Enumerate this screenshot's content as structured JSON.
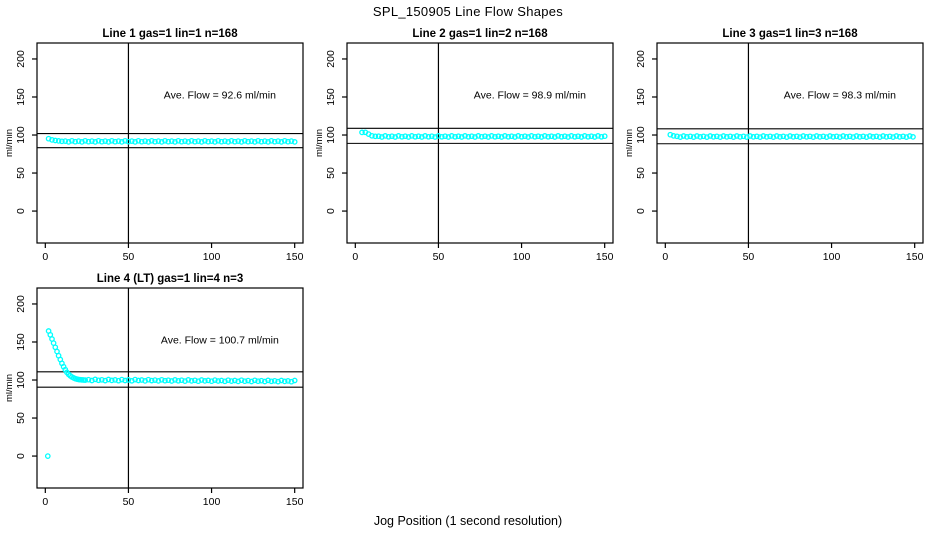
{
  "figure": {
    "title": "SPL_150905  Line Flow Shapes",
    "xlabel": "Jog Position (1 second resolution)"
  },
  "colors": {
    "points": "#00ffff",
    "axis": "#000000",
    "background": "#ffffff"
  },
  "chart_data": {
    "type": "scatter",
    "title": "SPL_150905  Line Flow Shapes",
    "xlabel": "Jog Position (1 second resolution)",
    "ylabel": "ml/min",
    "layout": "4 panels: three across top row, one at bottom left; no grid; no legend",
    "xlim": [
      -5,
      155
    ],
    "ylim": [
      -42,
      221
    ],
    "x_ticks": [
      0,
      50,
      100,
      150
    ],
    "y_ticks": [
      0,
      50,
      100,
      150,
      200
    ],
    "point_color": "#00ffff",
    "annotation_pos": [
      105,
      148
    ],
    "panels": [
      {
        "title": "Line 1 gas=1 lin=1 n=168",
        "annotation": "Ave. Flow =  92.6  ml/min",
        "ave_flow": 92.6,
        "n": 168,
        "vline_x": 50,
        "hlines": [
          101.9,
          83.3
        ],
        "segments": [
          {
            "x0": 2,
            "dx": 2,
            "y": [
              95.2,
              93.6,
              92.8,
              92.2,
              91.8,
              92.0,
              90.9,
              92.4,
              91.2,
              92.0,
              90.9,
              92.4,
              91.2,
              92.0,
              90.9,
              92.4,
              91.2,
              92.0,
              90.9,
              92.4,
              91.2,
              92.0,
              90.9,
              92.4,
              91.2,
              92.0,
              90.9,
              92.4,
              91.2,
              92.0,
              90.9,
              92.4,
              91.2,
              92.0,
              90.9,
              92.4,
              91.2,
              92.0,
              90.9,
              92.4,
              91.2,
              92.0,
              90.9,
              92.4,
              91.2,
              92.0,
              90.9,
              92.4,
              91.2,
              92.0,
              90.9,
              92.4,
              91.2,
              92.0,
              90.9,
              92.4,
              91.2,
              92.0,
              90.9,
              92.4,
              91.2,
              92.0,
              90.9,
              92.4,
              91.2,
              92.0,
              90.9,
              92.4,
              91.2,
              92.0,
              90.9,
              92.4,
              91.2,
              92.0,
              90.9
            ]
          }
        ],
        "extra_points": []
      },
      {
        "title": "Line 2 gas=1 lin=2 n=168",
        "annotation": "Ave. Flow =  98.9  ml/min",
        "ave_flow": 98.9,
        "n": 168,
        "vline_x": 50,
        "hlines": [
          108.8,
          89.0
        ],
        "segments": [
          {
            "x0": 4,
            "dx": 2,
            "y": [
              103.4,
              103.6,
              101.2,
              99.0,
              98.3,
              98.5,
              97.4,
              98.9,
              97.7,
              98.5,
              97.4,
              98.9,
              97.7,
              98.5,
              97.4,
              98.9,
              97.7,
              98.5,
              97.4,
              98.9,
              97.7,
              98.5,
              97.4,
              98.9,
              97.7,
              98.5,
              97.4,
              98.9,
              97.7,
              98.5,
              97.4,
              98.9,
              97.7,
              98.5,
              97.4,
              98.9,
              97.7,
              98.5,
              97.4,
              98.9,
              97.7,
              98.5,
              97.4,
              98.9,
              97.7,
              98.5,
              97.4,
              98.9,
              97.7,
              98.5,
              97.4,
              98.9,
              97.7,
              98.5,
              97.4,
              98.9,
              97.7,
              98.5,
              97.4,
              98.9,
              97.7,
              98.5,
              97.4,
              98.9,
              97.7,
              98.5,
              97.4,
              98.9,
              97.7,
              98.5,
              97.4,
              98.9,
              97.7,
              98.5
            ]
          }
        ],
        "extra_points": []
      },
      {
        "title": "Line 3 gas=1 lin=3 n=168",
        "annotation": "Ave. Flow =  98.3  ml/min",
        "ave_flow": 98.3,
        "n": 168,
        "vline_x": 50,
        "hlines": [
          108.1,
          88.5
        ],
        "segments": [
          {
            "x0": 3,
            "dx": 2,
            "y": [
              100.4,
              98.9,
              98.3,
              97.2,
              98.7,
              97.5,
              98.3,
              97.2,
              98.7,
              97.5,
              98.3,
              97.2,
              98.7,
              97.5,
              98.3,
              97.2,
              98.7,
              97.5,
              98.3,
              97.2,
              98.7,
              97.5,
              98.3,
              97.2,
              98.7,
              97.5,
              98.3,
              97.2,
              98.7,
              97.5,
              98.3,
              97.2,
              98.7,
              97.5,
              98.3,
              97.2,
              98.7,
              97.5,
              98.3,
              97.2,
              98.7,
              97.5,
              98.3,
              97.2,
              98.7,
              97.5,
              98.3,
              97.2,
              98.7,
              97.5,
              98.3,
              97.2,
              98.7,
              97.5,
              98.3,
              97.2,
              98.7,
              97.5,
              98.3,
              97.2,
              98.7,
              97.5,
              98.3,
              97.2,
              98.7,
              97.5,
              98.3,
              97.2,
              98.7,
              97.5,
              98.3,
              97.2,
              98.7,
              97.5
            ]
          }
        ],
        "extra_points": []
      },
      {
        "title": "Line 4 (LT) gas=1 lin=4 n=3",
        "annotation": "Ave. Flow =  100.7  ml/min",
        "ave_flow": 100.7,
        "n": 3,
        "vline_x": 50,
        "hlines": [
          110.8,
          90.6
        ],
        "segments": [
          {
            "x0": 2,
            "dx": 1,
            "y": [
              164.5,
              159.5,
              154.0,
              148.5,
              143.0,
              137.5,
              132.0,
              127.0,
              122.0,
              117.5,
              113.5,
              110.0,
              107.5,
              105.5,
              104.0,
              102.8,
              101.8,
              101.2,
              100.7,
              100.4,
              100.2,
              100.0,
              99.9
            ]
          },
          {
            "x0": 26,
            "dx": 2,
            "y": [
              100.4,
              99.3,
              100.8,
              99.6,
              100.3,
              99.2,
              100.7,
              99.5,
              100.2,
              99.1,
              100.6,
              99.4,
              100.1,
              99.0,
              100.5,
              99.3,
              100.0,
              98.9,
              100.4,
              99.2,
              99.9,
              98.8,
              100.3,
              99.1,
              99.8,
              98.7,
              100.2,
              99.0,
              99.7,
              98.6,
              100.1,
              98.9,
              99.6,
              98.5,
              100.0,
              98.8,
              99.5,
              98.4,
              99.9,
              98.7,
              99.4,
              98.3,
              99.8,
              98.6,
              99.3,
              98.2,
              99.7,
              98.5,
              99.2,
              98.1,
              99.6,
              98.4,
              99.1,
              98.0,
              99.5,
              98.3,
              99.0,
              97.9,
              99.4,
              98.2,
              98.9,
              97.8,
              99.3
            ]
          }
        ],
        "extra_points": [
          [
            1.5,
            0
          ]
        ]
      }
    ]
  }
}
